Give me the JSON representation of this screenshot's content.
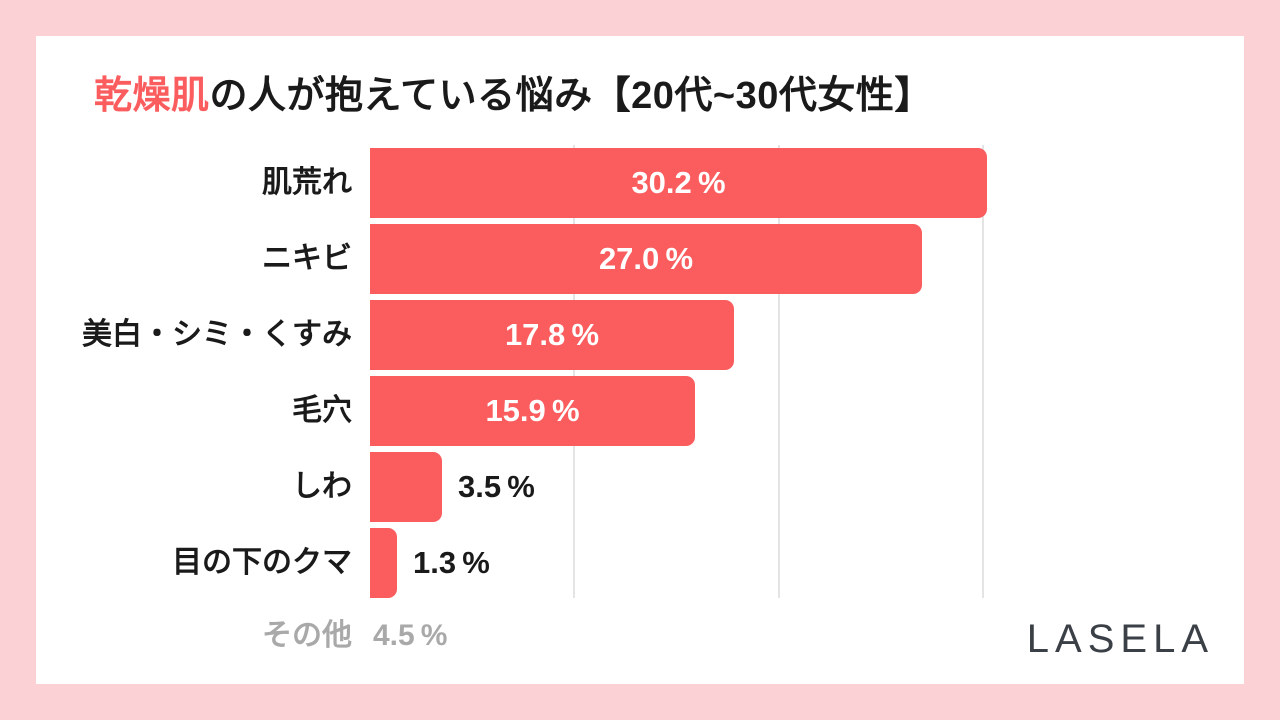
{
  "title": {
    "accent": "乾燥肌",
    "rest": "の人が抱えている悩み【20代~30代女性】"
  },
  "colors": {
    "accent": "#fb5c5e",
    "frame_pink": "#fbd1d6",
    "card_bg": "#ffffff",
    "text_dark": "#1a1a1a",
    "muted_gray": "#a9a9a9",
    "gridline": "#e4e4e4",
    "logo_gray": "#3b4047",
    "bar_value_white": "#ffffff"
  },
  "chart_data": {
    "type": "bar",
    "orientation": "horizontal",
    "title": "乾燥肌の人が抱えている悩み【20代~30代女性】",
    "categories": [
      "肌荒れ",
      "ニキビ",
      "美白・シミ・くすみ",
      "毛穴",
      "しわ",
      "目の下のクマ",
      "その他"
    ],
    "values": [
      30.2,
      27.0,
      17.8,
      15.9,
      3.5,
      1.3,
      4.5
    ],
    "value_labels": [
      "30.2 %",
      "27.0 %",
      "17.8 %",
      "15.9 %",
      "3.5 %",
      "1.3 %",
      "4.5 %"
    ],
    "bar_drawn": [
      true,
      true,
      true,
      true,
      true,
      true,
      false
    ],
    "value_inside_bar": [
      true,
      true,
      true,
      true,
      false,
      false,
      false
    ],
    "category_highlight": [
      "none",
      "accent",
      "none",
      "none",
      "none",
      "none",
      "muted"
    ],
    "x_ticks_percent": [
      10,
      20,
      30
    ],
    "xlim": [
      0,
      30.2
    ],
    "grid": "vertical-light-gray",
    "legend": "none"
  },
  "logo": {
    "text": "LASELA"
  }
}
